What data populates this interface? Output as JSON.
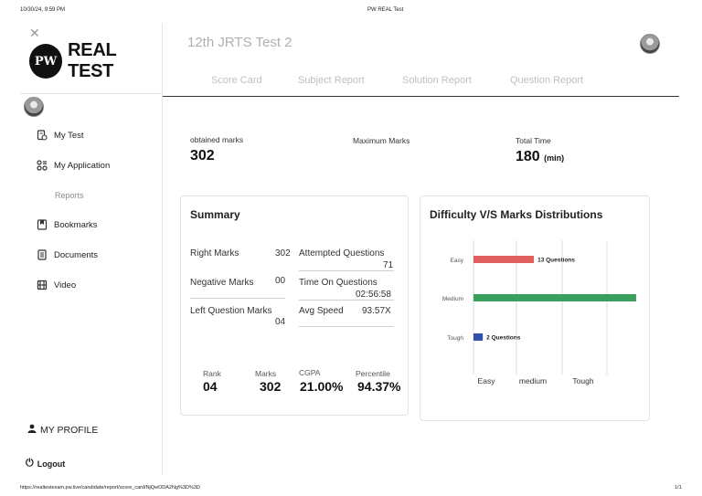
{
  "print": {
    "datetime": "10/30/24, 9:59 PM",
    "title": "PW REAL Test",
    "url": "https://realtestexam.pw.live/candidate/report/score_card/NjQwODA2Ng%3D%3D",
    "page": "1/1"
  },
  "sidebar": {
    "logo_mark": "PW",
    "logo_text": "REAL TEST",
    "items": [
      {
        "label": "My Test",
        "icon": "report-icon"
      },
      {
        "label": "My Application",
        "icon": "application-icon"
      }
    ],
    "section_heading": "Reports",
    "report_items": [
      {
        "label": "Bookmarks",
        "icon": "bookmark-icon"
      },
      {
        "label": "Documents",
        "icon": "document-icon"
      },
      {
        "label": "Video",
        "icon": "video-icon"
      }
    ],
    "profile": "MY PROFILE",
    "logout": "Logout"
  },
  "header": {
    "test_title": "12th JRTS Test 2",
    "tabs": [
      "Score Card",
      "Subject Report",
      "Solution Report",
      "Question Report"
    ]
  },
  "marks": {
    "obtained_label": "obtained marks",
    "obtained_value": "302",
    "maximum_label": "Maximum Marks",
    "maximum_value": "",
    "time_label": "Total Time",
    "time_value": "180",
    "time_unit": "(min)"
  },
  "summary": {
    "title": "Summary",
    "left_rows": [
      {
        "label": "Right Marks",
        "value": "302"
      },
      {
        "label": "Negative Marks",
        "value": "00"
      },
      {
        "label": "Left Question Marks",
        "value": "04"
      }
    ],
    "right_rows": [
      {
        "label": "Attempted Questions",
        "value": "71"
      },
      {
        "label": "Time On Questions",
        "value": "02:56:58"
      },
      {
        "label": "Avg Speed",
        "value": "93.57X"
      }
    ],
    "stats": [
      {
        "label": "Rank",
        "value": "04"
      },
      {
        "label": "Marks",
        "value": "302"
      },
      {
        "label": "CGPA",
        "value": "21.00%"
      },
      {
        "label": "Percentile",
        "value": "94.37%"
      }
    ]
  },
  "difficulty": {
    "title": "Difficulty V/S Marks Distributions"
  },
  "chart_data": {
    "type": "bar",
    "orientation": "horizontal",
    "categories": [
      "Easy",
      "Medium",
      "Tough"
    ],
    "values": [
      13,
      35,
      2
    ],
    "data_labels": [
      "13 Questions",
      "",
      "2 Questions"
    ],
    "colors": [
      "#e06060",
      "#3a9e5c",
      "#3550a8"
    ],
    "x_tick_labels": [
      "Easy",
      "medium",
      "Tough"
    ],
    "xlim": [
      0,
      36
    ],
    "grid": true,
    "legend": "none"
  }
}
